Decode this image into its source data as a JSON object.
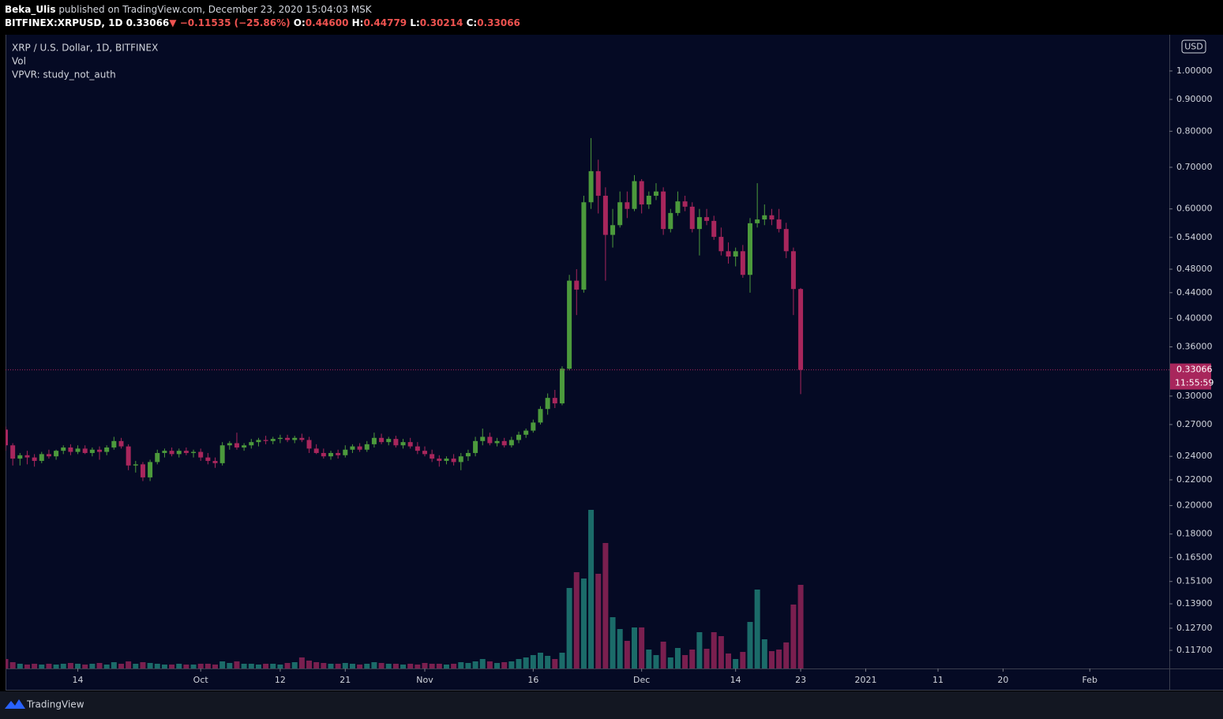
{
  "header": {
    "publisher": "Beka_Ulis",
    "published": "published on TradingView.com, December 23, 2020 15:04:03 MSK",
    "symbol": "BITFINEX:XRPUSD, 1D",
    "last": "0.33066",
    "arrow": "▼",
    "change": "−0.11535 (−25.86%)",
    "ohlc": [
      {
        "key": "O:",
        "value": "0.44600"
      },
      {
        "key": "H:",
        "value": "0.44779"
      },
      {
        "key": "L:",
        "value": "0.30214"
      },
      {
        "key": "C:",
        "value": "0.33066"
      }
    ]
  },
  "legend": [
    "XRP / U.S. Dollar, 1D, BITFINEX",
    "Vol",
    "VPVR: study_not_auth"
  ],
  "price_axis": {
    "currency": "USD",
    "last_price": {
      "value": 0.33066,
      "label": "0.33066"
    },
    "countdown": "11:55:59"
  },
  "footer": {
    "brand": "TradingView"
  },
  "chart_data": {
    "type": "candlestick",
    "log": true,
    "grid": false,
    "up_color": "#4c9a3c",
    "down_color": "#a8265c",
    "vol_up_color": "#1b6b69",
    "vol_down_color": "#7a1f4f",
    "xlim": [
      "2020-09-04",
      "2021-02-12"
    ],
    "xticks": [
      {
        "value": "2020-09-14",
        "label": "14"
      },
      {
        "value": "2020-10-01",
        "label": "Oct"
      },
      {
        "value": "2020-10-12",
        "label": "12"
      },
      {
        "value": "2020-10-21",
        "label": "21"
      },
      {
        "value": "2020-11-01",
        "label": "Nov"
      },
      {
        "value": "2020-11-16",
        "label": "16"
      },
      {
        "value": "2020-12-01",
        "label": "Dec"
      },
      {
        "value": "2020-12-14",
        "label": "14"
      },
      {
        "value": "2020-12-23",
        "label": "23"
      },
      {
        "value": "2021-01-01",
        "label": "2021"
      },
      {
        "value": "2021-01-11",
        "label": "11"
      },
      {
        "value": "2021-01-20",
        "label": "20"
      },
      {
        "value": "2021-02-01",
        "label": "Feb"
      }
    ],
    "ylim": [
      0.1094,
      1.114
    ],
    "yticks": [
      {
        "value": 1.0,
        "label": "1.00000"
      },
      {
        "value": 0.9,
        "label": "0.90000"
      },
      {
        "value": 0.8,
        "label": "0.80000"
      },
      {
        "value": 0.7,
        "label": "0.70000"
      },
      {
        "value": 0.6,
        "label": "0.60000"
      },
      {
        "value": 0.54,
        "label": "0.54000"
      },
      {
        "value": 0.48,
        "label": "0.48000"
      },
      {
        "value": 0.44,
        "label": "0.44000"
      },
      {
        "value": 0.4,
        "label": "0.40000"
      },
      {
        "value": 0.36,
        "label": "0.36000"
      },
      {
        "value": 0.3,
        "label": "0.30000"
      },
      {
        "value": 0.27,
        "label": "0.27000"
      },
      {
        "value": 0.24,
        "label": "0.24000"
      },
      {
        "value": 0.22,
        "label": "0.22000"
      },
      {
        "value": 0.2,
        "label": "0.20000"
      },
      {
        "value": 0.18,
        "label": "0.18000"
      },
      {
        "value": 0.165,
        "label": "0.16500"
      },
      {
        "value": 0.151,
        "label": "0.15100"
      },
      {
        "value": 0.139,
        "label": "0.13900"
      },
      {
        "value": 0.127,
        "label": "0.12700"
      },
      {
        "value": 0.117,
        "label": "0.11700"
      }
    ],
    "y2lim": [
      0,
      794
    ],
    "x": [
      "2020-09-04",
      "2020-09-05",
      "2020-09-06",
      "2020-09-07",
      "2020-09-08",
      "2020-09-09",
      "2020-09-10",
      "2020-09-11",
      "2020-09-12",
      "2020-09-13",
      "2020-09-14",
      "2020-09-15",
      "2020-09-16",
      "2020-09-17",
      "2020-09-18",
      "2020-09-19",
      "2020-09-20",
      "2020-09-21",
      "2020-09-22",
      "2020-09-23",
      "2020-09-24",
      "2020-09-25",
      "2020-09-26",
      "2020-09-27",
      "2020-09-28",
      "2020-09-29",
      "2020-09-30",
      "2020-10-01",
      "2020-10-02",
      "2020-10-03",
      "2020-10-04",
      "2020-10-05",
      "2020-10-06",
      "2020-10-07",
      "2020-10-08",
      "2020-10-09",
      "2020-10-10",
      "2020-10-11",
      "2020-10-12",
      "2020-10-13",
      "2020-10-14",
      "2020-10-15",
      "2020-10-16",
      "2020-10-17",
      "2020-10-18",
      "2020-10-19",
      "2020-10-20",
      "2020-10-21",
      "2020-10-22",
      "2020-10-23",
      "2020-10-24",
      "2020-10-25",
      "2020-10-26",
      "2020-10-27",
      "2020-10-28",
      "2020-10-29",
      "2020-10-30",
      "2020-10-31",
      "2020-11-01",
      "2020-11-02",
      "2020-11-03",
      "2020-11-04",
      "2020-11-05",
      "2020-11-06",
      "2020-11-07",
      "2020-11-08",
      "2020-11-09",
      "2020-11-10",
      "2020-11-11",
      "2020-11-12",
      "2020-11-13",
      "2020-11-14",
      "2020-11-15",
      "2020-11-16",
      "2020-11-17",
      "2020-11-18",
      "2020-11-19",
      "2020-11-20",
      "2020-11-21",
      "2020-11-22",
      "2020-11-23",
      "2020-11-24",
      "2020-11-25",
      "2020-11-26",
      "2020-11-27",
      "2020-11-28",
      "2020-11-29",
      "2020-11-30",
      "2020-12-01",
      "2020-12-02",
      "2020-12-03",
      "2020-12-04",
      "2020-12-05",
      "2020-12-06",
      "2020-12-07",
      "2020-12-08",
      "2020-12-09",
      "2020-12-10",
      "2020-12-11",
      "2020-12-12",
      "2020-12-13",
      "2020-12-14",
      "2020-12-15",
      "2020-12-16",
      "2020-12-17",
      "2020-12-18",
      "2020-12-19",
      "2020-12-20",
      "2020-12-21",
      "2020-12-22",
      "2020-12-23"
    ],
    "open": [
      0.265,
      0.25,
      0.238,
      0.241,
      0.239,
      0.236,
      0.242,
      0.24,
      0.245,
      0.248,
      0.244,
      0.247,
      0.243,
      0.246,
      0.244,
      0.248,
      0.254,
      0.249,
      0.232,
      0.233,
      0.222,
      0.235,
      0.243,
      0.245,
      0.242,
      0.245,
      0.243,
      0.244,
      0.239,
      0.236,
      0.234,
      0.25,
      0.252,
      0.248,
      0.25,
      0.253,
      0.255,
      0.254,
      0.256,
      0.257,
      0.255,
      0.257,
      0.255,
      0.247,
      0.243,
      0.24,
      0.243,
      0.241,
      0.246,
      0.249,
      0.246,
      0.251,
      0.257,
      0.253,
      0.256,
      0.25,
      0.253,
      0.249,
      0.245,
      0.242,
      0.238,
      0.236,
      0.238,
      0.235,
      0.24,
      0.243,
      0.254,
      0.258,
      0.252,
      0.254,
      0.25,
      0.255,
      0.26,
      0.264,
      0.272,
      0.286,
      0.298,
      0.292,
      0.332,
      0.46,
      0.445,
      0.615,
      0.69,
      0.63,
      0.545,
      0.565,
      0.615,
      0.6,
      0.665,
      0.61,
      0.63,
      0.64,
      0.557,
      0.591,
      0.617,
      0.605,
      0.557,
      0.582,
      0.574,
      0.541,
      0.513,
      0.503,
      0.513,
      0.47,
      0.569,
      0.577,
      0.586,
      0.577,
      0.557,
      0.513,
      0.446
    ],
    "high": [
      0.268,
      0.252,
      0.243,
      0.245,
      0.242,
      0.244,
      0.246,
      0.246,
      0.25,
      0.251,
      0.25,
      0.25,
      0.248,
      0.249,
      0.25,
      0.258,
      0.257,
      0.251,
      0.236,
      0.235,
      0.237,
      0.246,
      0.247,
      0.248,
      0.247,
      0.248,
      0.246,
      0.247,
      0.243,
      0.239,
      0.253,
      0.254,
      0.262,
      0.252,
      0.256,
      0.257,
      0.259,
      0.258,
      0.26,
      0.26,
      0.259,
      0.261,
      0.258,
      0.251,
      0.247,
      0.245,
      0.246,
      0.25,
      0.251,
      0.252,
      0.254,
      0.262,
      0.261,
      0.258,
      0.259,
      0.256,
      0.257,
      0.253,
      0.249,
      0.246,
      0.241,
      0.24,
      0.242,
      0.243,
      0.246,
      0.258,
      0.266,
      0.262,
      0.257,
      0.257,
      0.258,
      0.263,
      0.266,
      0.275,
      0.289,
      0.303,
      0.307,
      0.335,
      0.47,
      0.48,
      0.63,
      0.78,
      0.72,
      0.65,
      0.6,
      0.64,
      0.64,
      0.68,
      0.67,
      0.64,
      0.66,
      0.65,
      0.6,
      0.64,
      0.63,
      0.615,
      0.6,
      0.6,
      0.585,
      0.56,
      0.53,
      0.52,
      0.525,
      0.58,
      0.66,
      0.61,
      0.6,
      0.6,
      0.57,
      0.52,
      0.44779
    ],
    "low": [
      0.245,
      0.232,
      0.232,
      0.233,
      0.231,
      0.234,
      0.238,
      0.237,
      0.242,
      0.241,
      0.242,
      0.242,
      0.24,
      0.237,
      0.241,
      0.246,
      0.247,
      0.228,
      0.226,
      0.219,
      0.219,
      0.233,
      0.239,
      0.24,
      0.239,
      0.241,
      0.239,
      0.236,
      0.233,
      0.23,
      0.232,
      0.246,
      0.246,
      0.245,
      0.247,
      0.249,
      0.251,
      0.251,
      0.252,
      0.253,
      0.252,
      0.253,
      0.243,
      0.242,
      0.238,
      0.237,
      0.238,
      0.239,
      0.243,
      0.244,
      0.244,
      0.248,
      0.251,
      0.25,
      0.248,
      0.247,
      0.247,
      0.242,
      0.24,
      0.235,
      0.231,
      0.233,
      0.232,
      0.228,
      0.236,
      0.24,
      0.25,
      0.25,
      0.249,
      0.248,
      0.248,
      0.252,
      0.257,
      0.262,
      0.27,
      0.28,
      0.287,
      0.29,
      0.33,
      0.405,
      0.44,
      0.6,
      0.59,
      0.46,
      0.52,
      0.56,
      0.58,
      0.595,
      0.59,
      0.6,
      0.62,
      0.545,
      0.55,
      0.585,
      0.595,
      0.55,
      0.505,
      0.565,
      0.535,
      0.505,
      0.49,
      0.485,
      0.465,
      0.44,
      0.56,
      0.565,
      0.565,
      0.55,
      0.5,
      0.405,
      0.30214
    ],
    "close": [
      0.25,
      0.238,
      0.241,
      0.239,
      0.236,
      0.242,
      0.24,
      0.245,
      0.248,
      0.244,
      0.247,
      0.243,
      0.246,
      0.244,
      0.248,
      0.254,
      0.249,
      0.232,
      0.233,
      0.222,
      0.235,
      0.243,
      0.245,
      0.242,
      0.245,
      0.243,
      0.244,
      0.239,
      0.236,
      0.234,
      0.25,
      0.252,
      0.248,
      0.25,
      0.253,
      0.255,
      0.254,
      0.256,
      0.257,
      0.255,
      0.257,
      0.255,
      0.247,
      0.243,
      0.24,
      0.243,
      0.241,
      0.246,
      0.249,
      0.246,
      0.251,
      0.257,
      0.253,
      0.256,
      0.25,
      0.253,
      0.249,
      0.245,
      0.242,
      0.238,
      0.236,
      0.238,
      0.235,
      0.24,
      0.243,
      0.254,
      0.258,
      0.252,
      0.254,
      0.25,
      0.255,
      0.26,
      0.264,
      0.272,
      0.286,
      0.298,
      0.292,
      0.332,
      0.46,
      0.445,
      0.615,
      0.69,
      0.63,
      0.545,
      0.565,
      0.615,
      0.6,
      0.665,
      0.61,
      0.63,
      0.64,
      0.557,
      0.591,
      0.617,
      0.605,
      0.557,
      0.582,
      0.574,
      0.541,
      0.513,
      0.503,
      0.513,
      0.47,
      0.569,
      0.577,
      0.586,
      0.577,
      0.557,
      0.513,
      0.446,
      0.33066
    ],
    "volume": [
      12,
      8,
      6,
      5,
      6,
      5,
      6,
      5,
      6,
      7,
      6,
      5,
      6,
      7,
      5,
      8,
      6,
      9,
      6,
      8,
      7,
      6,
      5,
      5,
      6,
      5,
      5,
      6,
      6,
      5,
      9,
      7,
      9,
      6,
      6,
      5,
      6,
      6,
      5,
      7,
      8,
      14,
      10,
      8,
      7,
      6,
      6,
      7,
      6,
      5,
      6,
      8,
      7,
      6,
      6,
      5,
      6,
      5,
      7,
      6,
      6,
      5,
      6,
      8,
      7,
      9,
      12,
      9,
      7,
      8,
      9,
      12,
      14,
      17,
      20,
      16,
      12,
      20,
      102,
      122,
      114,
      201,
      120,
      159,
      65,
      50,
      35,
      52,
      52,
      24,
      17,
      34,
      14,
      26,
      17,
      24,
      46,
      25,
      46,
      41,
      19,
      12,
      21,
      59,
      100,
      37,
      22,
      24,
      33,
      81,
      106
    ]
  }
}
